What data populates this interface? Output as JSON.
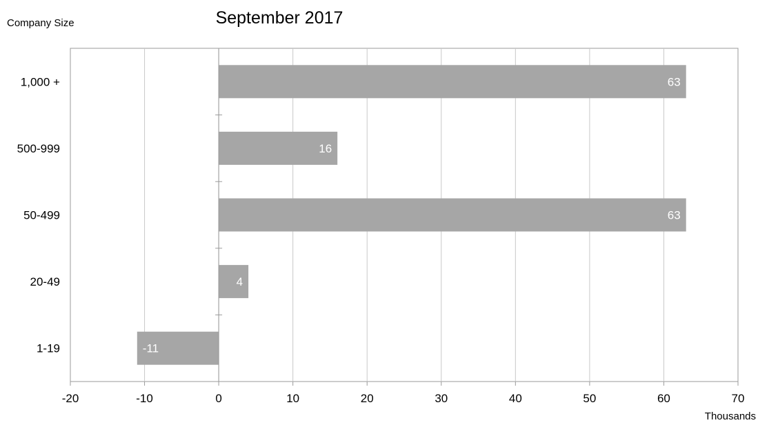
{
  "chart_data": {
    "type": "bar",
    "orientation": "horizontal",
    "title": "September 2017",
    "ylabel": "Company Size",
    "xunit": "Thousands",
    "categories": [
      "1,000 +",
      "500-999",
      "50-499",
      "20-49",
      "1-19"
    ],
    "values": [
      63,
      16,
      63,
      4,
      -11
    ],
    "data_labels": [
      "63",
      "16",
      "63",
      "4",
      "-11"
    ],
    "xlim": [
      -20,
      70
    ],
    "xticks": [
      -20,
      -10,
      0,
      10,
      20,
      30,
      40,
      50,
      60,
      70
    ],
    "xtick_labels": [
      "-20",
      "-10",
      "0",
      "10",
      "20",
      "30",
      "40",
      "50",
      "60",
      "70"
    ],
    "grid": "vertical",
    "legend": "none",
    "bar_color": "#a6a6a6",
    "data_label_color": "#ffffff"
  }
}
